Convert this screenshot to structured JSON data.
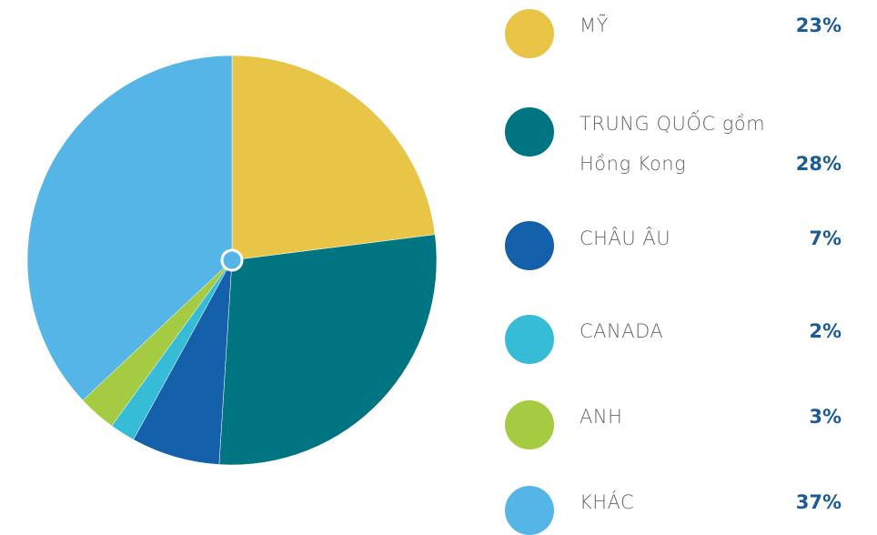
{
  "chart_data": {
    "type": "pie",
    "categories": [
      "MỸ",
      "TRUNG QUỐC gồm Hồng Kong",
      "CHÂU ÂU",
      "CANADA",
      "ANH",
      "KHÁC"
    ],
    "values": [
      23,
      28,
      7,
      2,
      3,
      37
    ],
    "value_labels": [
      "23%",
      "28%",
      "7%",
      "2%",
      "3%",
      "37%"
    ],
    "colors": [
      "#e8c547",
      "#007582",
      "#1560aa",
      "#36bcd6",
      "#a5cb42",
      "#55b5e6"
    ]
  }
}
